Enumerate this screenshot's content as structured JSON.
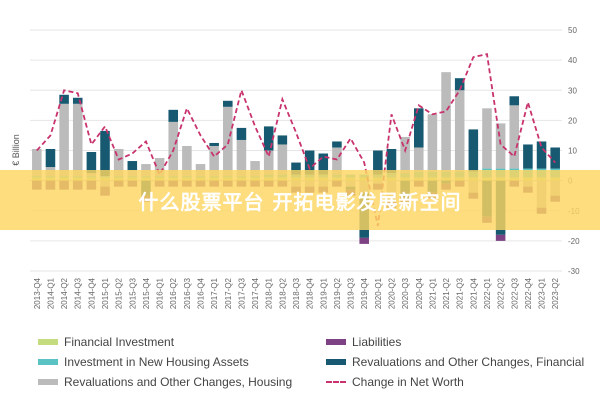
{
  "chart_data": {
    "type": "bar",
    "ylabel": "€ Billion",
    "ylim": [
      -30,
      50
    ],
    "yticks": [
      50,
      40,
      30,
      20,
      10,
      0,
      -10,
      -20,
      -30
    ],
    "stacked": true,
    "grid": true,
    "legend_position": "bottom",
    "categories": [
      "2013-Q4",
      "2014-Q1",
      "2014-Q2",
      "2014-Q3",
      "2014-Q4",
      "2015-Q1",
      "2015-Q2",
      "2015-Q3",
      "2015-Q4",
      "2016-Q1",
      "2016-Q2",
      "2016-Q3",
      "2016-Q4",
      "2017-Q1",
      "2017-Q2",
      "2017-Q3",
      "2017-Q4",
      "2018-Q1",
      "2018-Q2",
      "2018-Q3",
      "2018-Q4",
      "2019-Q1",
      "2019-Q2",
      "2019-Q3",
      "2019-Q4",
      "2020-Q1",
      "2020-Q2",
      "2020-Q3",
      "2020-Q4",
      "2021-Q1",
      "2021-Q2",
      "2021-Q3",
      "2021-Q4",
      "2022-Q1",
      "2022-Q2",
      "2022-Q3",
      "2022-Q4",
      "2023-Q1",
      "2023-Q2"
    ],
    "series": [
      {
        "name": "Financial Investment",
        "color": "#c5dc7e",
        "values": [
          1,
          1,
          1,
          1,
          1,
          1,
          1,
          1,
          1,
          1,
          1,
          1,
          1,
          1,
          1,
          1,
          1,
          1,
          1,
          1,
          1,
          1,
          1,
          1,
          1,
          1,
          1,
          1,
          1,
          1,
          1,
          1,
          1,
          1,
          1,
          1,
          1,
          1,
          1
        ]
      },
      {
        "name": "Investment in New Housing Assets",
        "color": "#5bc3c4",
        "values": [
          0.5,
          0.5,
          0.5,
          0.5,
          0.5,
          0.5,
          0.5,
          0.5,
          0.5,
          0.5,
          0.5,
          0.5,
          0.5,
          0.5,
          0.5,
          0.5,
          0.5,
          1,
          1,
          1,
          1,
          1,
          1,
          1,
          1,
          1,
          1.5,
          1.5,
          2,
          2,
          2,
          2,
          2,
          3,
          3,
          3,
          3,
          3,
          3
        ]
      },
      {
        "name": "Revaluations and Other Changes, Housing",
        "color": "#bbbbbb",
        "values": [
          9,
          3,
          24,
          24,
          1,
          -2,
          9,
          2,
          4,
          6,
          18,
          10,
          4,
          10,
          23,
          12,
          5,
          8,
          10,
          -2,
          -2,
          -2,
          9,
          -2,
          -4,
          -1,
          -7,
          12,
          8,
          19,
          33,
          27,
          -4,
          20,
          15,
          21,
          -2,
          -9,
          -5
        ]
      },
      {
        "name": "Revaluations and Other Changes, Financial",
        "color": "#165970",
        "values": [
          0,
          6,
          3,
          2,
          7,
          15,
          0,
          3,
          -5,
          0,
          4,
          0,
          0,
          1,
          2,
          4,
          0,
          8,
          3,
          4,
          8,
          7,
          2,
          -1,
          -15,
          8,
          8,
          -6,
          13,
          -4,
          -1,
          4,
          14,
          -12,
          -18,
          3,
          8,
          9,
          7
        ]
      },
      {
        "name": "Liabilities",
        "color": "#7d4283",
        "values": [
          -3,
          -3,
          -3,
          -3,
          -3,
          -3,
          -2,
          -2,
          -2,
          -2,
          -2,
          -2,
          -2,
          -2,
          -2,
          -2,
          -2,
          -2,
          -2,
          -2,
          -2,
          -2,
          -2,
          -2,
          -2,
          -2,
          -2,
          -2,
          -2,
          -2,
          -2,
          -2,
          -2,
          -2,
          -2,
          -2,
          -2,
          -2,
          -2
        ]
      }
    ],
    "line": {
      "name": "Change in Net Worth",
      "color": "#c8336e",
      "values": [
        10,
        15,
        30,
        29,
        12,
        18,
        7,
        9,
        13,
        2,
        10,
        24,
        15,
        8,
        12,
        30,
        18,
        8,
        27,
        16,
        4,
        8,
        7,
        14,
        6,
        -15,
        22,
        10,
        25,
        22,
        23,
        30,
        41,
        42,
        12,
        8,
        26,
        11,
        6
      ]
    }
  },
  "banner": {
    "text": "什么股票平台 开拓电影发展新空间"
  }
}
